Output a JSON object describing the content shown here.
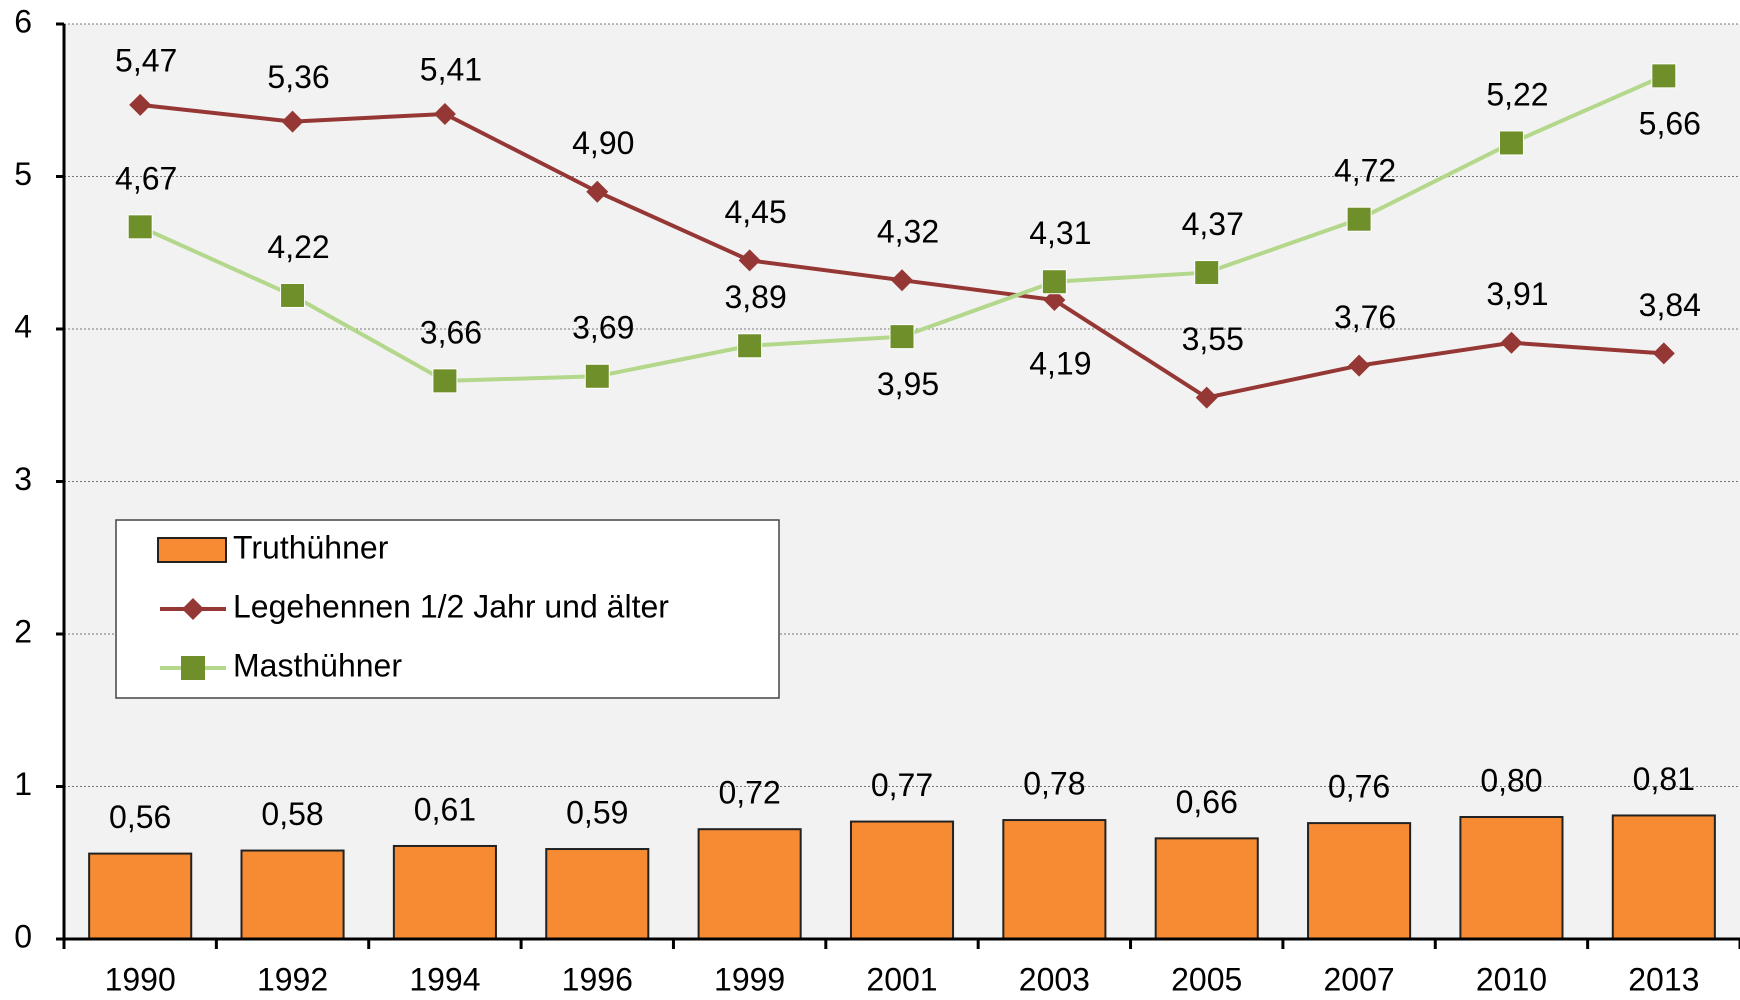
{
  "chart_data": {
    "type": "combo",
    "categories": [
      "1990",
      "1992",
      "1994",
      "1996",
      "1999",
      "2001",
      "2003",
      "2005",
      "2007",
      "2010",
      "2013"
    ],
    "series": [
      {
        "name": "Truthühner",
        "type": "bar",
        "color": "#f68b33",
        "values": [
          0.56,
          0.58,
          0.61,
          0.59,
          0.72,
          0.77,
          0.78,
          0.66,
          0.76,
          0.8,
          0.81
        ],
        "value_labels": [
          "0,56",
          "0,58",
          "0,61",
          "0,59",
          "0,72",
          "0,77",
          "0,78",
          "0,66",
          "0,76",
          "0,80",
          "0,81"
        ]
      },
      {
        "name": "Legehennen 1/2 Jahr und älter",
        "type": "line",
        "color": "#953735",
        "marker": "diamond",
        "values": [
          5.47,
          5.36,
          5.41,
          4.9,
          4.45,
          4.32,
          4.19,
          3.55,
          3.76,
          3.91,
          3.84
        ],
        "value_labels": [
          "5,47",
          "5,36",
          "5,41",
          "4,90",
          "4,45",
          "4,32",
          "4,19",
          "3,55",
          "3,76",
          "3,91",
          "3,84"
        ]
      },
      {
        "name": "Masthühner",
        "type": "line",
        "color": "#b3d78b",
        "marker": "square",
        "marker_color": "#6f8f2a",
        "values": [
          4.67,
          4.22,
          3.66,
          3.69,
          3.89,
          3.95,
          4.31,
          4.37,
          4.72,
          5.22,
          5.66
        ],
        "value_labels": [
          "4,67",
          "4,22",
          "3,66",
          "3,69",
          "3,89",
          "3,95",
          "4,31",
          "4,37",
          "4,72",
          "5,22",
          "5,66"
        ]
      }
    ],
    "ylim": [
      0,
      6
    ],
    "yticks": [
      0,
      1,
      2,
      3,
      4,
      5,
      6
    ],
    "grid": true
  }
}
